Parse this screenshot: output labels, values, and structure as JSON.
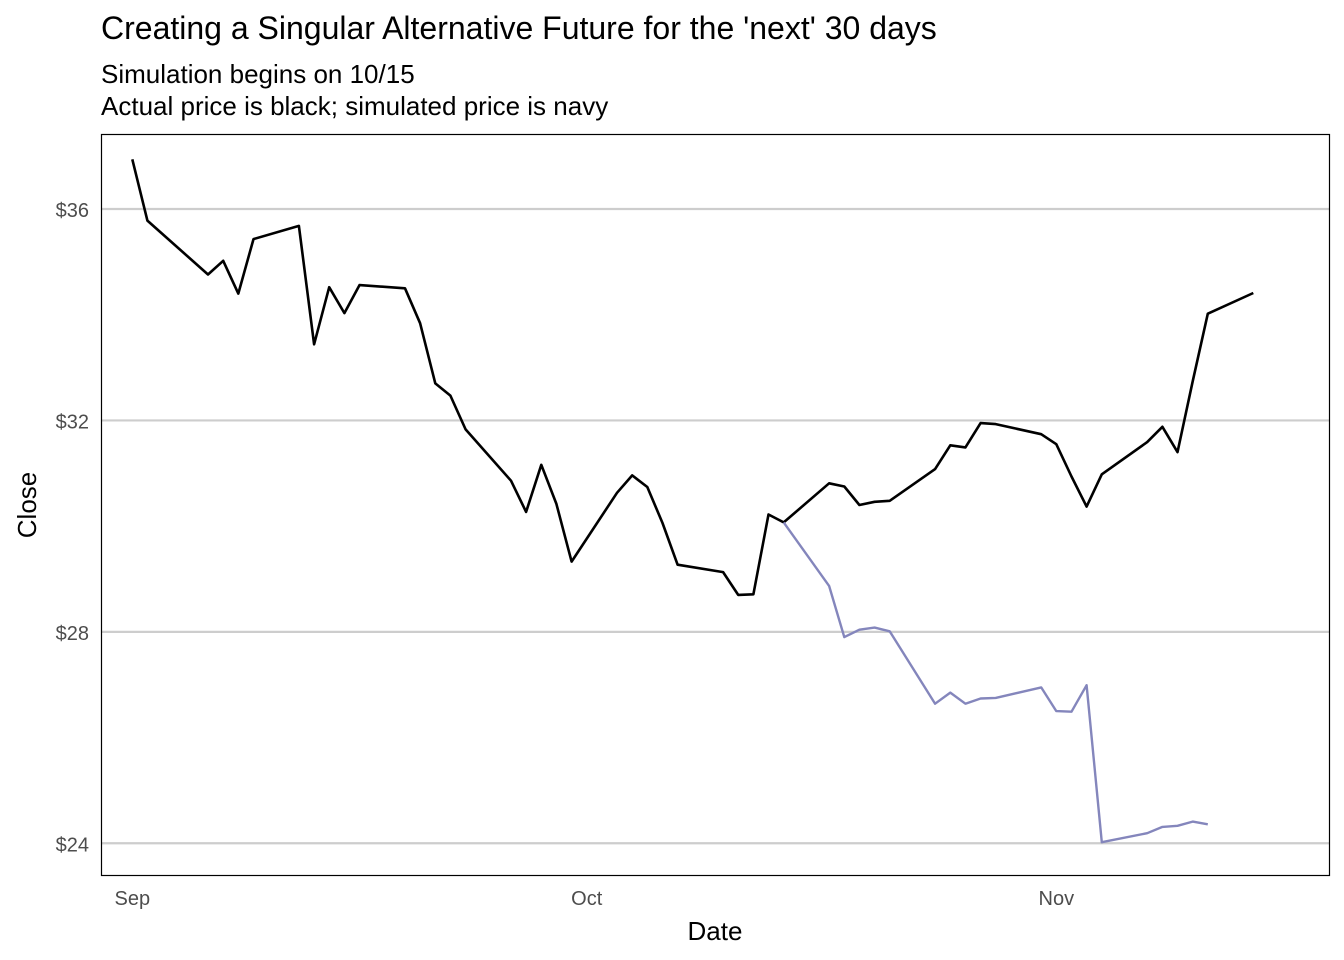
{
  "chart_data": {
    "type": "line",
    "title": "Creating a Singular Alternative Future for the 'next' 30 days",
    "subtitle": [
      "Simulation begins on 10/15",
      "Actual price is black; simulated price is navy"
    ],
    "xlabel": "Date",
    "ylabel": "Close",
    "x_ticks": [
      {
        "label": "Sep",
        "date": "2020-09-01"
      },
      {
        "label": "Oct",
        "date": "2020-10-01"
      },
      {
        "label": "Nov",
        "date": "2020-11-01"
      }
    ],
    "y_ticks": [
      {
        "label": "$24",
        "value": 24
      },
      {
        "label": "$28",
        "value": 28
      },
      {
        "label": "$32",
        "value": 32
      },
      {
        "label": "$36",
        "value": 36
      }
    ],
    "xlim": [
      "2020-08-30",
      "2020-11-19"
    ],
    "ylim": [
      23.4,
      37.4
    ],
    "grid": "horizontal major",
    "legend": "none",
    "series": [
      {
        "color": "#000000",
        "points": [
          [
            "2020-09-01",
            36.94
          ],
          [
            "2020-09-02",
            35.78
          ],
          [
            "2020-09-06",
            34.76
          ],
          [
            "2020-09-07",
            35.02
          ],
          [
            "2020-09-08",
            34.4
          ],
          [
            "2020-09-09",
            35.43
          ],
          [
            "2020-09-12",
            35.68
          ],
          [
            "2020-09-13",
            33.44
          ],
          [
            "2020-09-14",
            34.52
          ],
          [
            "2020-09-15",
            34.03
          ],
          [
            "2020-09-16",
            34.56
          ],
          [
            "2020-09-19",
            34.5
          ],
          [
            "2020-09-20",
            33.84
          ],
          [
            "2020-09-21",
            32.7
          ],
          [
            "2020-09-22",
            32.47
          ],
          [
            "2020-09-23",
            31.83
          ],
          [
            "2020-09-26",
            30.86
          ],
          [
            "2020-09-27",
            30.27
          ],
          [
            "2020-09-28",
            31.16
          ],
          [
            "2020-09-29",
            30.42
          ],
          [
            "2020-09-30",
            29.33
          ],
          [
            "2020-10-03",
            30.63
          ],
          [
            "2020-10-04",
            30.96
          ],
          [
            "2020-10-05",
            30.74
          ],
          [
            "2020-10-06",
            30.06
          ],
          [
            "2020-10-07",
            29.27
          ],
          [
            "2020-10-10",
            29.13
          ],
          [
            "2020-10-11",
            28.7
          ],
          [
            "2020-10-12",
            28.71
          ],
          [
            "2020-10-13",
            30.22
          ],
          [
            "2020-10-14",
            30.07
          ],
          [
            "2020-10-17",
            30.81
          ],
          [
            "2020-10-18",
            30.75
          ],
          [
            "2020-10-19",
            30.4
          ],
          [
            "2020-10-20",
            30.46
          ],
          [
            "2020-10-21",
            30.48
          ],
          [
            "2020-10-24",
            31.08
          ],
          [
            "2020-10-25",
            31.53
          ],
          [
            "2020-10-26",
            31.49
          ],
          [
            "2020-10-27",
            31.95
          ],
          [
            "2020-10-28",
            31.93
          ],
          [
            "2020-10-31",
            31.74
          ],
          [
            "2020-11-01",
            31.55
          ],
          [
            "2020-11-02",
            30.94
          ],
          [
            "2020-11-03",
            30.37
          ],
          [
            "2020-11-04",
            30.98
          ],
          [
            "2020-11-07",
            31.59
          ],
          [
            "2020-11-08",
            31.88
          ],
          [
            "2020-11-09",
            31.4
          ],
          [
            "2020-11-10",
            32.74
          ],
          [
            "2020-11-11",
            34.02
          ],
          [
            "2020-11-14",
            34.41
          ]
        ]
      },
      {
        "color": "#8486BC",
        "points": [
          [
            "2020-10-14",
            30.07
          ],
          [
            "2020-10-17",
            28.87
          ],
          [
            "2020-10-18",
            27.9
          ],
          [
            "2020-10-19",
            28.04
          ],
          [
            "2020-10-20",
            28.08
          ],
          [
            "2020-10-21",
            28.01
          ],
          [
            "2020-10-24",
            26.64
          ],
          [
            "2020-10-25",
            26.85
          ],
          [
            "2020-10-26",
            26.64
          ],
          [
            "2020-10-27",
            26.74
          ],
          [
            "2020-10-28",
            26.75
          ],
          [
            "2020-10-31",
            26.95
          ],
          [
            "2020-11-01",
            26.5
          ],
          [
            "2020-11-02",
            26.49
          ],
          [
            "2020-11-03",
            26.99
          ],
          [
            "2020-11-04",
            24.02
          ],
          [
            "2020-11-07",
            24.19
          ],
          [
            "2020-11-08",
            24.31
          ],
          [
            "2020-11-09",
            24.33
          ],
          [
            "2020-11-10",
            24.41
          ],
          [
            "2020-11-11",
            24.36
          ]
        ]
      }
    ]
  }
}
